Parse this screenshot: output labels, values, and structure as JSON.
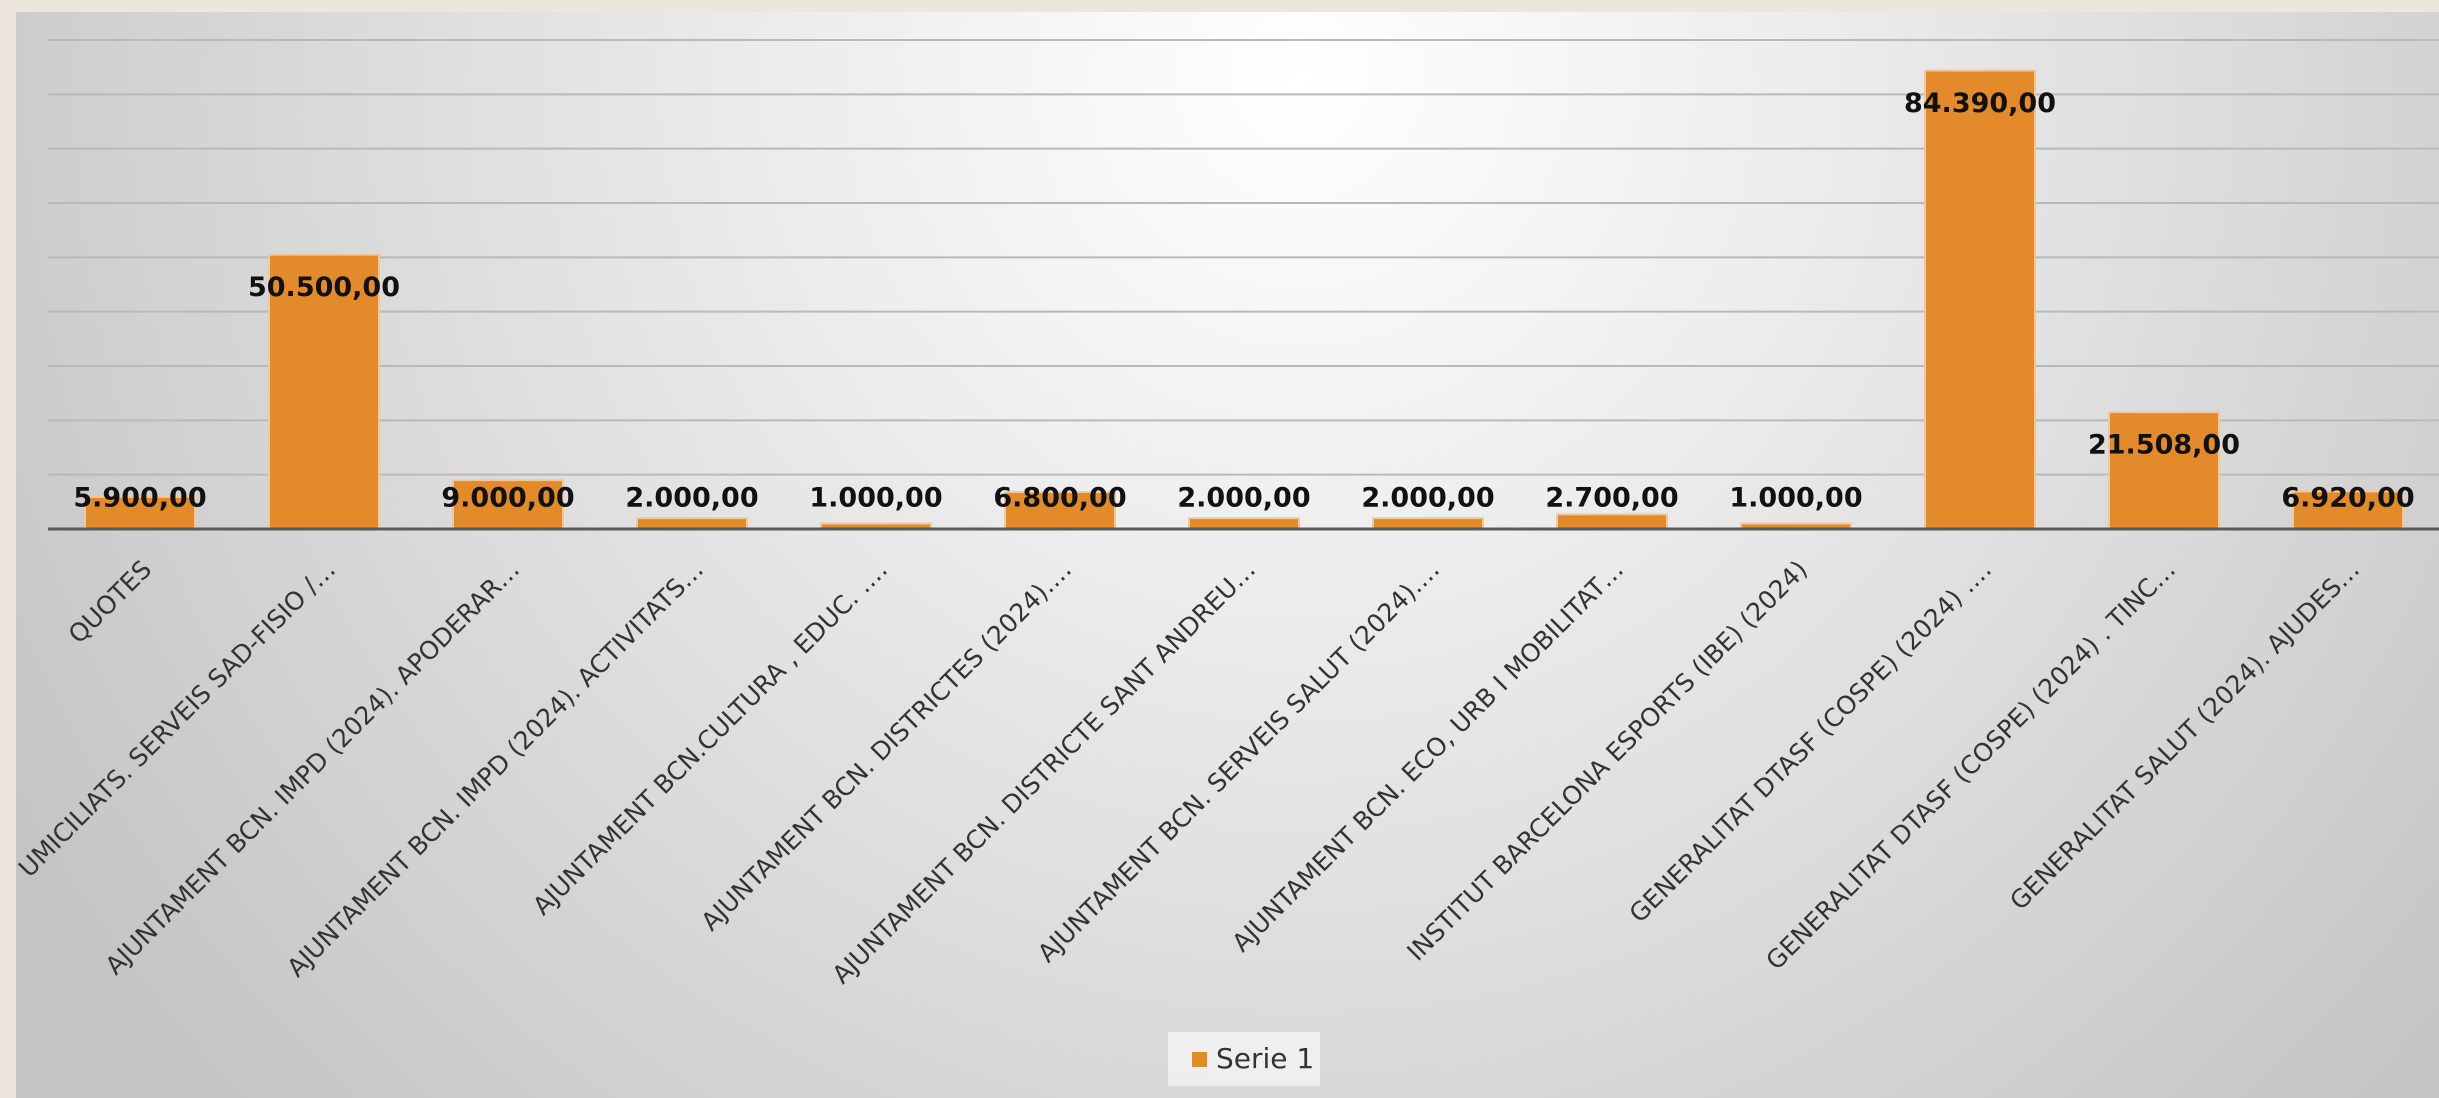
{
  "chart_data": {
    "type": "bar",
    "categories": [
      "QUOTES",
      "UMICILIATS. SERVEIS SAD-FISIO /…",
      "AJUNTAMENT BCN. IMPD (2024). APODERAR…",
      "AJUNTAMENT BCN. IMPD (2024). ACTIVITATS…",
      "AJUNTAMENT BCN.CULTURA , EDUC. .…",
      "AJUNTAMENT BCN. DISTRICTES  (2024).…",
      "AJUNTAMENT BCN. DISTRICTE SANT ANDREU…",
      "AJUNTAMENT BCN. SERVEIS SALUT (2024).…",
      "AJUNTAMENT BCN. ECO, URB I MOBILITAT…",
      "INSTITUT BARCELONA ESPORTS (IBE) (2024)",
      "GENERALITAT DTASF (COSPE) (2024) .…",
      "GENERALITAT DTASF (COSPE) (2024) . TINC…",
      "GENERALITAT SALUT (2024). AJUDES…"
    ],
    "series": [
      {
        "name": "Serie 1",
        "color": "#e38b2b",
        "values": [
          5900,
          50500,
          9000,
          2000,
          1000,
          6800,
          2000,
          2000,
          2700,
          1000,
          84390,
          21508,
          6920
        ],
        "value_labels": [
          "5.900,00",
          "50.500,00",
          "9.000,00",
          "2.000,00",
          "1.000,00",
          "6.800,00",
          "2.000,00",
          "2.000,00",
          "2.700,00",
          "1.000,00",
          "84.390,00",
          "21.508,00",
          "6.920,00"
        ]
      }
    ],
    "ylim": [
      0,
      90000
    ],
    "yticks": [
      0,
      10000,
      20000,
      30000,
      40000,
      50000,
      60000,
      70000,
      80000,
      90000
    ],
    "grid": true,
    "legend": "bottom"
  }
}
